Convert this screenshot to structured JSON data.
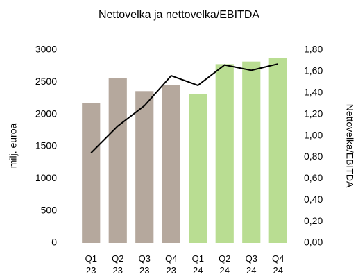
{
  "chart_data": {
    "type": "bar",
    "title": "Nettovelka ja nettovelka/EBITDA",
    "y_label": "milj. euroa",
    "y2_label": "Nettovelka/EBITDA",
    "categories": [
      "Q1 23",
      "Q2 23",
      "Q3 23",
      "Q4 23",
      "Q1 24",
      "Q2 24",
      "Q3 24",
      "Q4 24"
    ],
    "series": [
      {
        "type": "bar",
        "colors": [
          "#b5a89d",
          "#b5a89d",
          "#b5a89d",
          "#b5a89d",
          "#b9dd92",
          "#b9dd92",
          "#b9dd92",
          "#b9dd92"
        ],
        "values": [
          2170,
          2560,
          2360,
          2450,
          2320,
          2780,
          2820,
          2880
        ]
      },
      {
        "type": "line",
        "axis": "y2",
        "color": "#000000",
        "values": [
          0.84,
          1.09,
          1.28,
          1.56,
          1.47,
          1.66,
          1.61,
          1.67
        ]
      }
    ],
    "ylim": [
      0,
      3000
    ],
    "yticks": [
      0,
      500,
      1000,
      1500,
      2000,
      2500,
      3000
    ],
    "y2lim": [
      0,
      1.8
    ],
    "y2ticks": [
      {
        "value": 0,
        "label": "0,00"
      },
      {
        "value": 0.2,
        "label": "0,20"
      },
      {
        "value": 0.4,
        "label": "0,40"
      },
      {
        "value": 0.6,
        "label": "0,60"
      },
      {
        "value": 0.8,
        "label": "0,80"
      },
      {
        "value": 1.0,
        "label": "1,00"
      },
      {
        "value": 1.2,
        "label": "1,20"
      },
      {
        "value": 1.4,
        "label": "1,40"
      },
      {
        "value": 1.6,
        "label": "1,60"
      },
      {
        "value": 1.8,
        "label": "1,80"
      }
    ],
    "grid": false
  }
}
